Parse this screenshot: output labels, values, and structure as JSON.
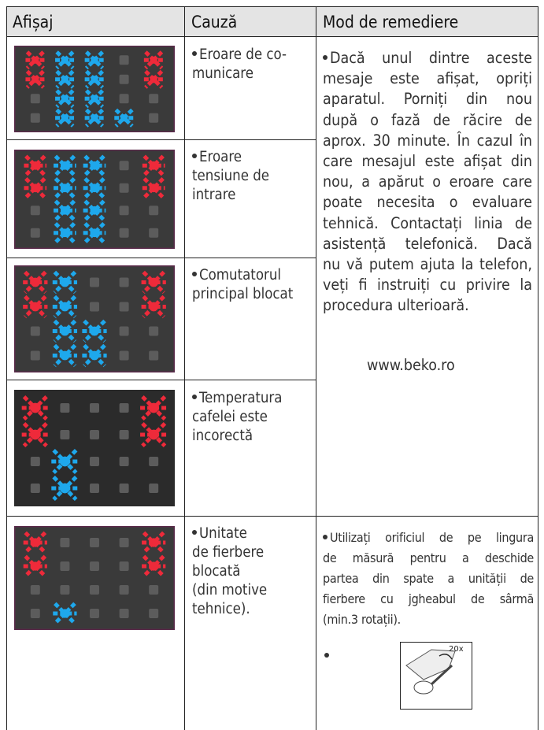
{
  "header": {
    "col1": "Afișaj",
    "col2": "Cauză",
    "col3": "Mod de remediere"
  },
  "rows": [
    {
      "cause": [
        "Eroare de co-",
        "municare"
      ]
    },
    {
      "cause": [
        "Eroare",
        "tensiune de",
        "intrare"
      ]
    },
    {
      "cause": [
        "Comutatorul",
        "principal blocat"
      ]
    },
    {
      "cause": [
        "Temperatura",
        "cafelei este",
        "incorectă"
      ]
    },
    {
      "cause": [
        "Unitate",
        "de fierbere",
        "blocată",
        "(din motive",
        "tehnice)."
      ]
    }
  ],
  "remedy": {
    "lines": [
      "Dacă unul dintre aceste",
      "mesaje este afișat, opriți",
      "aparatul. Porniți din nou",
      "după o fază de răcire de",
      "aprox. 30 minute. În cazul în",
      "care mesajul este afișat din",
      "nou, a apărut o eroare care",
      "poate necesita o evaluare",
      "tehnică. Contactați linia de",
      "asistență telefonică. Dacă",
      "nu vă putem ajuta la telefon,",
      "veți fi instruiți cu privire la",
      "procedura ulterioară."
    ],
    "website": "www.beko.ro"
  },
  "remedy2": {
    "lines": [
      "Utilizați orificiul de pe lingura",
      "de măsură pentru a deschide",
      "partea din spate a unității de",
      "fierbere cu jgheabul de sârmă",
      "(min.3 rotații)."
    ],
    "illustration_label": "20x"
  }
}
